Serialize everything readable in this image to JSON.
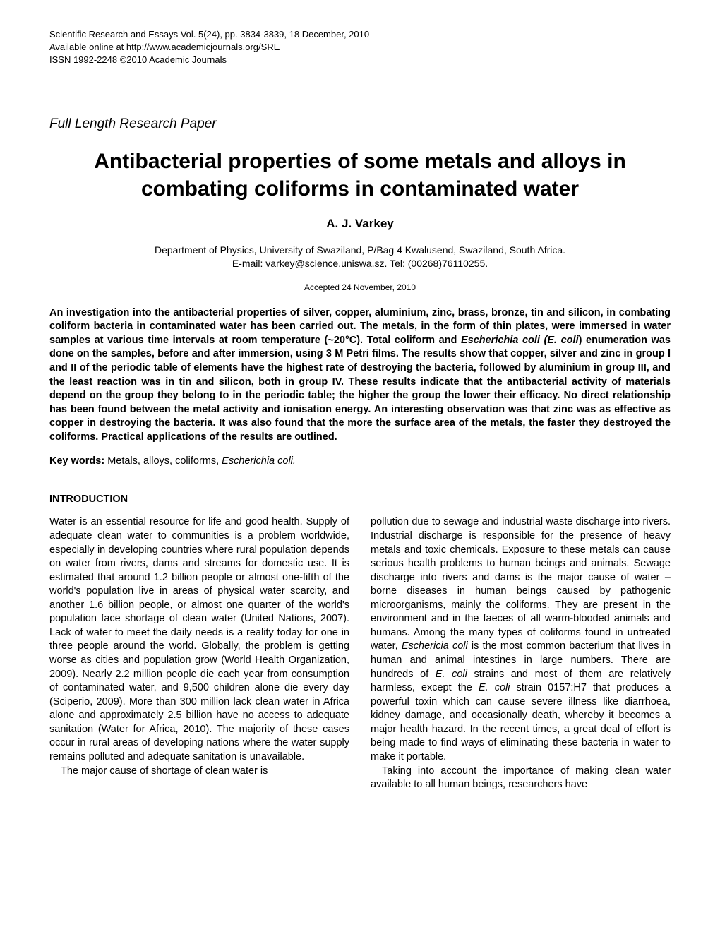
{
  "header": {
    "line1": "Scientific Research and Essays Vol. 5(24), pp. 3834-3839, 18 December, 2010",
    "line2": "Available online at http://www.academicjournals.org/SRE",
    "line3": "ISSN 1992-2248 ©2010 Academic Journals"
  },
  "paperType": "Full Length Research Paper",
  "title": "Antibacterial properties of some metals and alloys in combating coliforms in contaminated water",
  "author": "A. J. Varkey",
  "affiliation": {
    "line1": "Department of Physics, University of Swaziland, P/Bag 4 Kwalusend, Swaziland, South Africa.",
    "line2": "E-mail: varkey@science.uniswa.sz. Tel: (00268)76110255."
  },
  "accepted": "Accepted 24 November, 2010",
  "abstract": {
    "part1": "An investigation into the antibacterial properties of silver, copper, aluminium, zinc, brass, bronze, tin and silicon, in combating coliform bacteria in contaminated water has been carried out. The metals, in the form of thin plates, were immersed in water samples at various time intervals at room temperature (~20°C). Total coliform and ",
    "italic1": "Escherichia coli (E. coli",
    "part2": ") enumeration was done on the samples, before and after immersion, using 3 M Petri films. The results show that copper, silver and zinc in group I and II of the periodic table of elements have the highest rate of destroying the bacteria, followed by aluminium in group III, and the least reaction was in tin and silicon, both in group IV. These results indicate that the antibacterial activity of materials depend on the group they belong to in the periodic table; the higher the group the lower their efficacy. No direct relationship has been found between the metal activity and ionisation energy.  An interesting observation was that zinc was as effective as copper in destroying the bacteria.  It was also found that the more the surface area of the metals, the faster they destroyed the coliforms. Practical applications of the results are outlined."
  },
  "keywords": {
    "label": "Key words:",
    "text": " Metals, alloys, coliforms, ",
    "italic": "Escherichia coli."
  },
  "sectionHeading": "INTRODUCTION",
  "body": {
    "col1": {
      "p1": "Water is an essential resource for life and good health. Supply of adequate clean water to communities is a problem worldwide, especially in developing countries where rural population depends on water from rivers, dams and streams for domestic use. It is estimated that around 1.2 billion people or almost one-fifth of the world's population live in areas of physical water scarcity, and another 1.6 billion people, or almost one quarter of the world's population face shortage of clean water (United Nations, 2007).  Lack of water to meet the daily needs is a reality today for one in three people around the world. Globally, the problem is getting worse as cities and population grow (World Health Organization, 2009). Nearly 2.2 million people die each year from consumption of contaminated water, and 9,500 children alone die every day (Sciperio, 2009). More than 300 million lack clean water in Africa alone and approximately 2.5 billion have no access to adequate sanitation (Water for Africa, 2010). The majority of these cases occur in rural areas of developing nations where the water supply remains polluted and adequate sanitation is unavailable.",
      "p2": "The major cause of shortage of clean water is"
    },
    "col2": {
      "p1a": "pollution due to sewage and industrial waste discharge into rivers. Industrial discharge is responsible for the presence of heavy metals and toxic chemicals.  Exposure to these metals can cause serious health problems to human beings and animals. Sewage discharge into rivers and dams is the major cause of water – borne diseases in human beings caused by pathogenic microorganisms, mainly the coliforms. They are present in the environment and in the faeces of all warm-blooded animals and humans. Among the many types of coliforms found in untreated water, ",
      "italic1": "Eschericia coli",
      "p1b": " is the most common bacterium that lives in human and animal intestines in large numbers. There are hundreds of ",
      "italic2": "E. coli",
      "p1c": " strains and most of them are relatively harmless, except the ",
      "italic3": "E. coli",
      "p1d": " strain 0157:H7 that produces a powerful toxin which can cause severe illness like diarrhoea, kidney damage, and occasionally death, whereby it becomes a major health hazard. In the recent times, a great deal of effort is being made to find ways of eliminating these bacteria in water to make it portable.",
      "p2": "Taking into account the importance of making clean water available to all human beings, researchers have"
    }
  },
  "colors": {
    "background": "#ffffff",
    "text": "#000000"
  },
  "typography": {
    "bodyFontSize": 14.5,
    "titleFontSize": 30,
    "authorFontSize": 17,
    "headerFontSize": 13,
    "paperTypeFontSize": 19
  }
}
